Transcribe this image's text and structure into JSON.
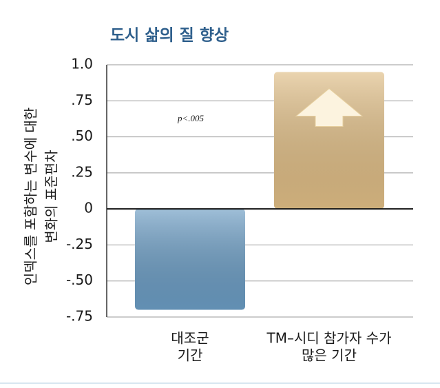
{
  "chart_data": {
    "type": "bar",
    "title": "도시 삶의 질 향상",
    "y_label": [
      "인덱스를 포함하는 변수에 대한",
      "변화의 표준편차"
    ],
    "annotation": "p<.005",
    "categories": [
      [
        "대조군",
        "기간"
      ],
      [
        "TM–시디 참가자 수가",
        "많은 기간"
      ]
    ],
    "values": [
      -0.7,
      0.95
    ],
    "colors": [
      "#6b9cc3",
      "#dfbd85"
    ],
    "ylim": [
      -0.75,
      1.0
    ],
    "yticks": [
      {
        "value": -0.75,
        "label": "-.75"
      },
      {
        "value": -0.5,
        "label": "-.50"
      },
      {
        "value": -0.25,
        "label": "-.25"
      },
      0,
      {
        "value": 0.25,
        "label": ".25"
      },
      {
        "value": 0.5,
        "label": ".50"
      },
      {
        "value": 0.75,
        "label": ".75"
      },
      {
        "value": 1.0,
        "label": "1.0"
      }
    ],
    "grid": true
  }
}
